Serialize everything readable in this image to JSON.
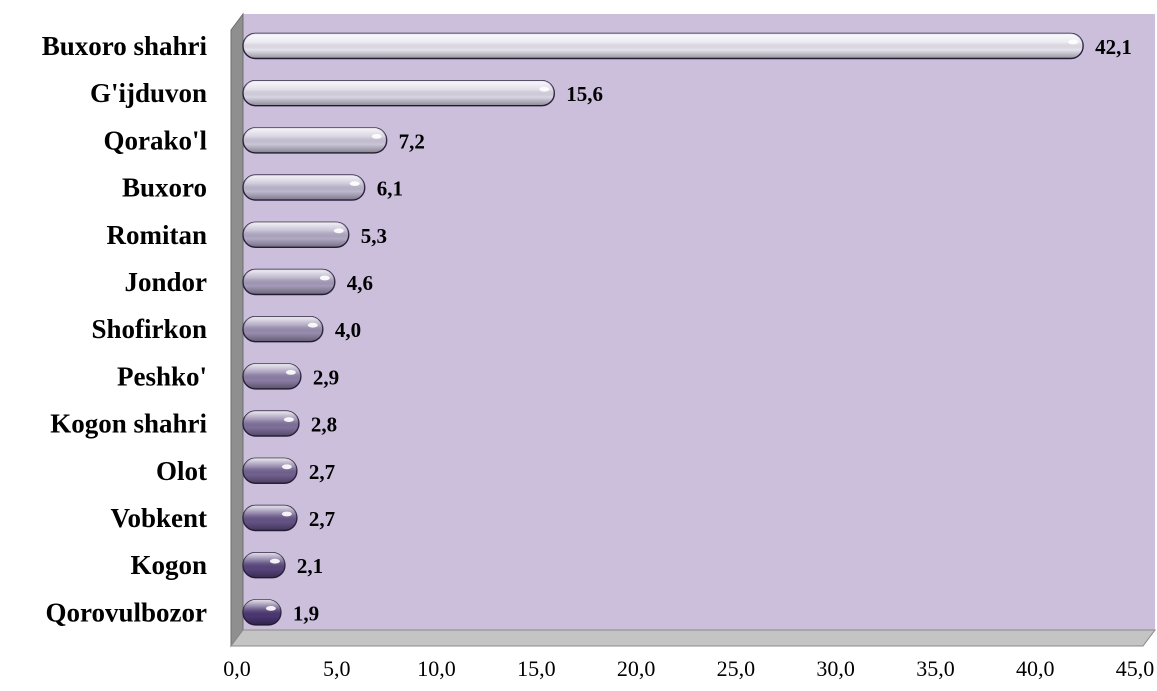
{
  "chart_data": {
    "type": "bar",
    "orientation": "horizontal",
    "categories": [
      "Buxoro shahri",
      "G'ijduvon",
      "Qorako'l",
      "Buxoro",
      "Romitan",
      "Jondor",
      "Shofirkon",
      "Peshko'",
      "Kogon shahri",
      "Olot",
      "Vobkent",
      "Kogon",
      "Qorovulbozor"
    ],
    "values": [
      42.1,
      15.6,
      7.2,
      6.1,
      5.3,
      4.6,
      4.0,
      2.9,
      2.8,
      2.7,
      2.7,
      2.1,
      1.9
    ],
    "value_labels": [
      "42,1",
      "15,6",
      "7,2",
      "6,1",
      "5,3",
      "4,6",
      "4,0",
      "2,9",
      "2,8",
      "2,7",
      "2,7",
      "2,1",
      "1,9"
    ],
    "xlim": [
      0,
      45
    ],
    "x_ticks": [
      0,
      5,
      10,
      15,
      20,
      25,
      30,
      35,
      40,
      45
    ],
    "x_tick_labels": [
      "0,0",
      "5,0",
      "10,0",
      "15,0",
      "20,0",
      "25,0",
      "30,0",
      "35,0",
      "40,0",
      "45,0"
    ],
    "title": "",
    "xlabel": "",
    "ylabel": "",
    "grid": false,
    "legend": "none",
    "colors": {
      "plot_background": "#cbbfdc",
      "wall_side": "#8f8f8f",
      "floor": "#c4c4c4",
      "bar_light": "#e6e3ee",
      "bar_dark": "#4b3672"
    }
  }
}
